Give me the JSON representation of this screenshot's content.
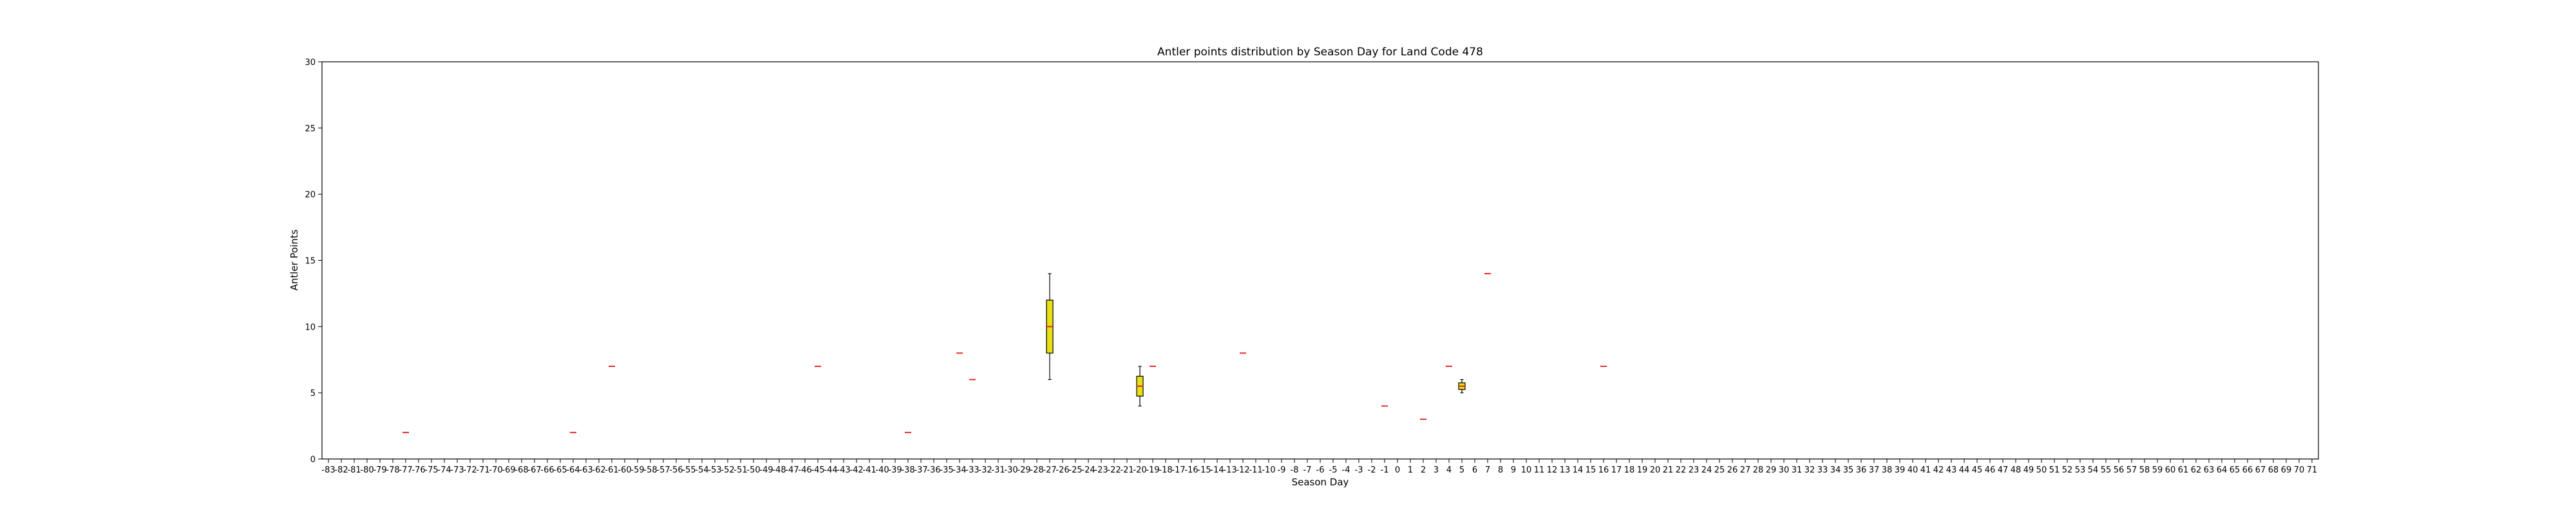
{
  "chart_data": {
    "type": "box",
    "title": "Antler points distribution by Season Day for Land Code 478",
    "xlabel": "Season Day",
    "ylabel": "Antler Points",
    "ylim": [
      0,
      30
    ],
    "yticks": [
      0,
      5,
      10,
      15,
      20,
      25,
      30
    ],
    "x_categories": [
      -83,
      -82,
      -81,
      -80,
      -79,
      -78,
      -77,
      -76,
      -75,
      -74,
      -73,
      -72,
      -71,
      -70,
      -69,
      -68,
      -67,
      -66,
      -65,
      -64,
      -63,
      -62,
      -61,
      -60,
      -59,
      -58,
      -57,
      -56,
      -55,
      -54,
      -53,
      -52,
      -51,
      -50,
      -49,
      -48,
      -47,
      -46,
      -45,
      -44,
      -43,
      -42,
      -41,
      -40,
      -39,
      -38,
      -37,
      -36,
      -35,
      -34,
      -33,
      -32,
      -31,
      -30,
      -29,
      -28,
      -27,
      -26,
      -25,
      -24,
      -23,
      -22,
      -21,
      -20,
      -19,
      -18,
      -17,
      -16,
      -15,
      -14,
      -13,
      -12,
      -11,
      -10,
      -9,
      -8,
      -7,
      -6,
      -5,
      -4,
      -3,
      -2,
      -1,
      0,
      1,
      2,
      3,
      4,
      5,
      6,
      7,
      8,
      9,
      10,
      11,
      12,
      13,
      14,
      15,
      16,
      17,
      18,
      19,
      20,
      21,
      22,
      23,
      24,
      25,
      26,
      27,
      28,
      29,
      30,
      31,
      32,
      33,
      34,
      35,
      36,
      37,
      38,
      39,
      40,
      41,
      42,
      43,
      44,
      45,
      46,
      47,
      48,
      49,
      50,
      51,
      52,
      53,
      54,
      55,
      56,
      57,
      58,
      59,
      60,
      61,
      62,
      63,
      64,
      65,
      66,
      67,
      68,
      69,
      70,
      71
    ],
    "boxes": [
      {
        "day": -77,
        "min": 2,
        "q1": 2,
        "median": 2,
        "q3": 2,
        "max": 2
      },
      {
        "day": -64,
        "min": 2,
        "q1": 2,
        "median": 2,
        "q3": 2,
        "max": 2
      },
      {
        "day": -61,
        "min": 7,
        "q1": 7,
        "median": 7,
        "q3": 7,
        "max": 7
      },
      {
        "day": -45,
        "min": 7,
        "q1": 7,
        "median": 7,
        "q3": 7,
        "max": 7
      },
      {
        "day": -38,
        "min": 2,
        "q1": 2,
        "median": 2,
        "q3": 2,
        "max": 2
      },
      {
        "day": -34,
        "min": 8,
        "q1": 8,
        "median": 8,
        "q3": 8,
        "max": 8
      },
      {
        "day": -33,
        "min": 6,
        "q1": 6,
        "median": 6,
        "q3": 6,
        "max": 6
      },
      {
        "day": -27,
        "min": 6,
        "q1": 8,
        "median": 10,
        "q3": 12,
        "max": 14
      },
      {
        "day": -20,
        "min": 4,
        "q1": 4.75,
        "median": 5.5,
        "q3": 6.25,
        "max": 7
      },
      {
        "day": -19,
        "min": 7,
        "q1": 7,
        "median": 7,
        "q3": 7,
        "max": 7
      },
      {
        "day": -12,
        "min": 8,
        "q1": 8,
        "median": 8,
        "q3": 8,
        "max": 8
      },
      {
        "day": -1,
        "min": 4,
        "q1": 4,
        "median": 4,
        "q3": 4,
        "max": 4
      },
      {
        "day": 2,
        "min": 3,
        "q1": 3,
        "median": 3,
        "q3": 3,
        "max": 3
      },
      {
        "day": 4,
        "min": 7,
        "q1": 7,
        "median": 7,
        "q3": 7,
        "max": 7
      },
      {
        "day": 5,
        "min": 5,
        "q1": 5.25,
        "median": 5.5,
        "q3": 5.75,
        "max": 6
      },
      {
        "day": 7,
        "min": 14,
        "q1": 14,
        "median": 14,
        "q3": 14,
        "max": 14
      },
      {
        "day": 16,
        "min": 7,
        "q1": 7,
        "median": 7,
        "q3": 7,
        "max": 7
      }
    ],
    "box_color": "#e8e010",
    "median_color": "#e8262a",
    "grid": false
  }
}
